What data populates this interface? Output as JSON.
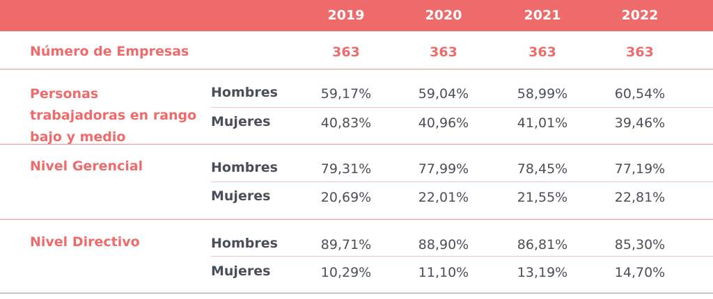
{
  "chart_data": {
    "type": "table",
    "columns": [
      "2019",
      "2020",
      "2021",
      "2022"
    ],
    "empresas": {
      "label": "Número de Empresas",
      "values": [
        "363",
        "363",
        "363",
        "363"
      ]
    },
    "groups": [
      {
        "label": "Personas trabajadoras en rango bajo y medio",
        "rows": [
          {
            "gender": "Hombres",
            "values": [
              "59,17%",
              "59,04%",
              "58,99%",
              "60,54%"
            ]
          },
          {
            "gender": "Mujeres",
            "values": [
              "40,83%",
              "40,96%",
              "41,01%",
              "39,46%"
            ]
          }
        ]
      },
      {
        "label": "Nivel Gerencial",
        "rows": [
          {
            "gender": "Hombres",
            "values": [
              "79,31%",
              "77,99%",
              "78,45%",
              "77,19%"
            ]
          },
          {
            "gender": "Mujeres",
            "values": [
              "20,69%",
              "22,01%",
              "21,55%",
              "22,81%"
            ]
          }
        ]
      },
      {
        "label": "Nivel Directivo",
        "rows": [
          {
            "gender": "Hombres",
            "values": [
              "89,71%",
              "88,90%",
              "86,81%",
              "85,30%"
            ]
          },
          {
            "gender": "Mujeres",
            "values": [
              "10,29%",
              "11,10%",
              "13,19%",
              "14,70%"
            ]
          }
        ]
      }
    ],
    "colors": {
      "accent": "#ef6b6b",
      "text": "#4a4f57",
      "rule": "#8a8f96"
    }
  }
}
